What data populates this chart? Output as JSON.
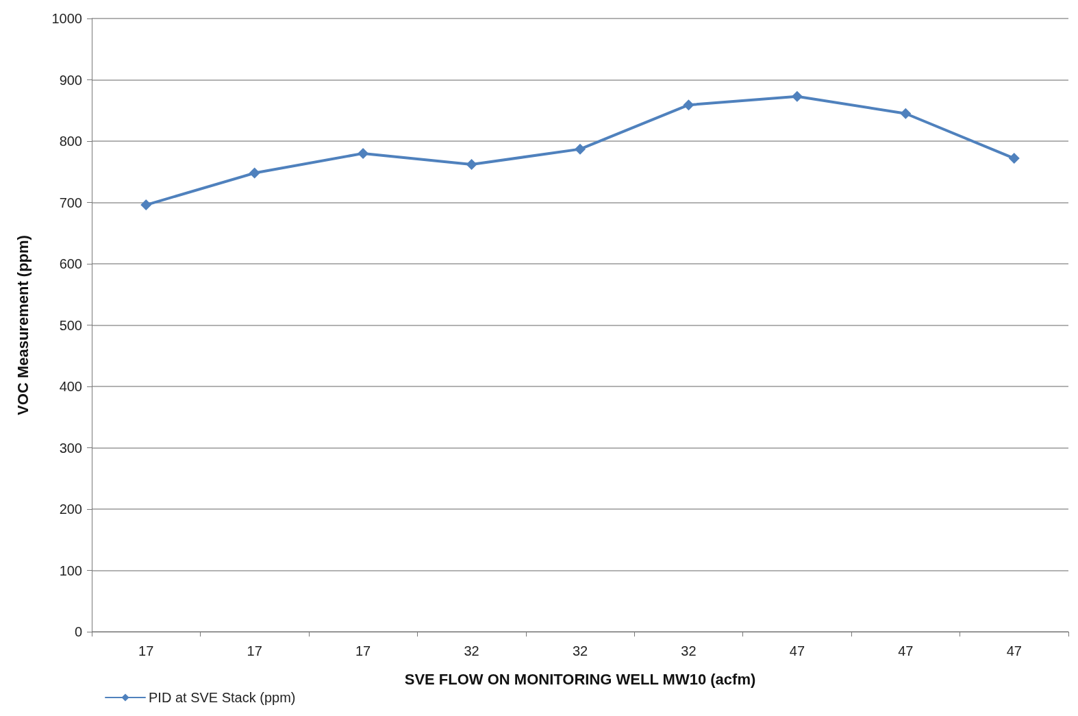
{
  "chart_data": {
    "type": "line",
    "xlabel": "SVE FLOW ON MONITORING WELL MW10 (acfm)",
    "ylabel": "VOC Measurement (ppm)",
    "categories": [
      "17",
      "17",
      "17",
      "32",
      "32",
      "32",
      "47",
      "47",
      "47"
    ],
    "series": [
      {
        "name": "PID at SVE Stack (ppm)",
        "color": "#4f81bd",
        "values": [
          696,
          748,
          780,
          762,
          787,
          859,
          873,
          845,
          772
        ]
      }
    ],
    "ylim": [
      0,
      1000
    ],
    "yticks": [
      0,
      100,
      200,
      300,
      400,
      500,
      600,
      700,
      800,
      900,
      1000
    ],
    "grid": "y",
    "legend": "bottom left",
    "marker": "diamond",
    "line_style": "solid"
  }
}
